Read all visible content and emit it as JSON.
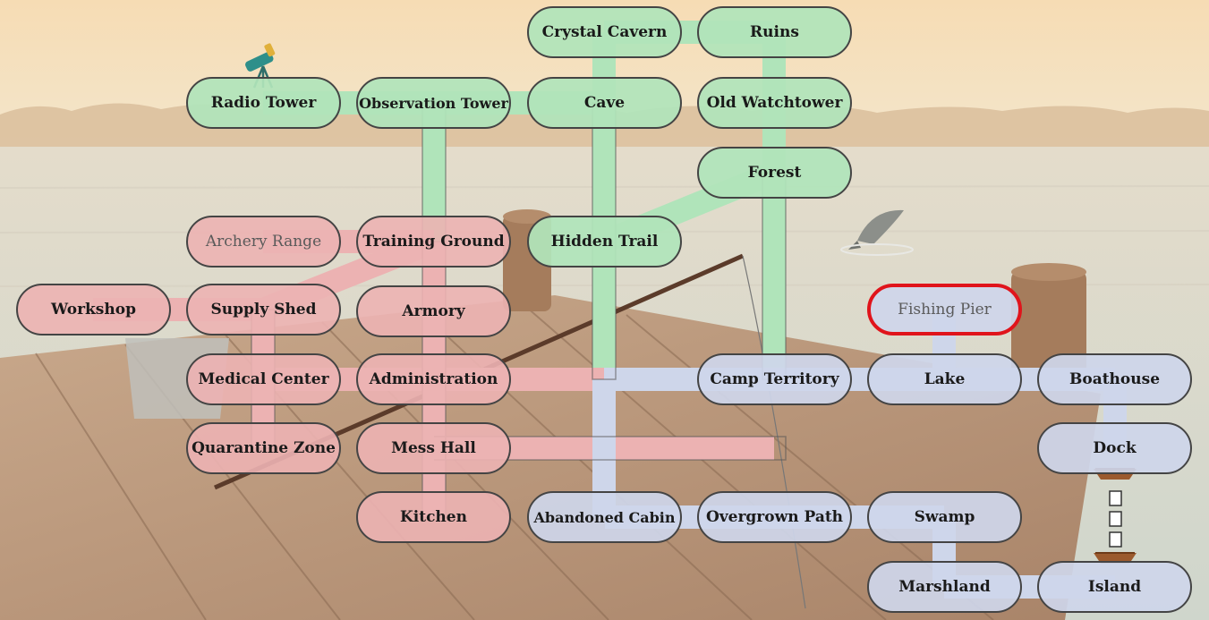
{
  "colors": {
    "green_zone": "#b0e4ba",
    "red_zone": "#ecb2b2",
    "blue_zone": "#ced6ea",
    "selected_outline": "#e0141b",
    "node_border": "#444444"
  },
  "map": {
    "nodes": {
      "crystal_cavern": "Crystal Cavern",
      "ruins": "Ruins",
      "radio_tower": "Radio Tower",
      "observation_tower": "Observation Tower",
      "cave": "Cave",
      "old_watchtower": "Old Watchtower",
      "forest": "Forest",
      "archery_range": "Archery Range",
      "training_ground": "Training Ground",
      "hidden_trail": "Hidden Trail",
      "workshop": "Workshop",
      "supply_shed": "Supply Shed",
      "armory": "Armory",
      "fishing_pier": "Fishing Pier",
      "medical_center": "Medical Center",
      "administration": "Administration",
      "camp_territory": "Camp Territory",
      "lake": "Lake",
      "boathouse": "Boathouse",
      "quarantine_zone": "Quarantine Zone",
      "mess_hall": "Mess Hall",
      "dock": "Dock",
      "kitchen": "Kitchen",
      "abandoned_cabin": "Abandoned Cabin",
      "overgrown_path": "Overgrown Path",
      "swamp": "Swamp",
      "marshland": "Marshland",
      "island": "Island"
    },
    "selected": "Fishing Pier",
    "icons": [
      "telescope-icon",
      "leaping-fish-icon",
      "rowboat-icon",
      "rowboat-icon"
    ]
  }
}
